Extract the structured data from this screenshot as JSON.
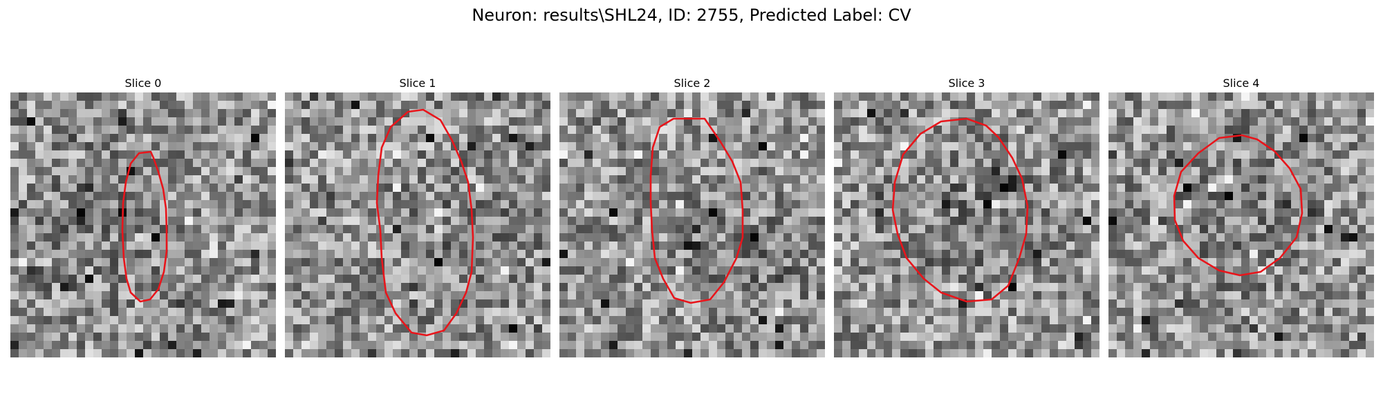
{
  "figure": {
    "title": "Neuron: results\\SHL24, ID: 2755, Predicted Label: CV",
    "contour_color": "#e8151b"
  },
  "slices": [
    {
      "label": "Slice 0"
    },
    {
      "label": "Slice 1"
    },
    {
      "label": "Slice 2"
    },
    {
      "label": "Slice 3"
    },
    {
      "label": "Slice 4"
    }
  ]
}
